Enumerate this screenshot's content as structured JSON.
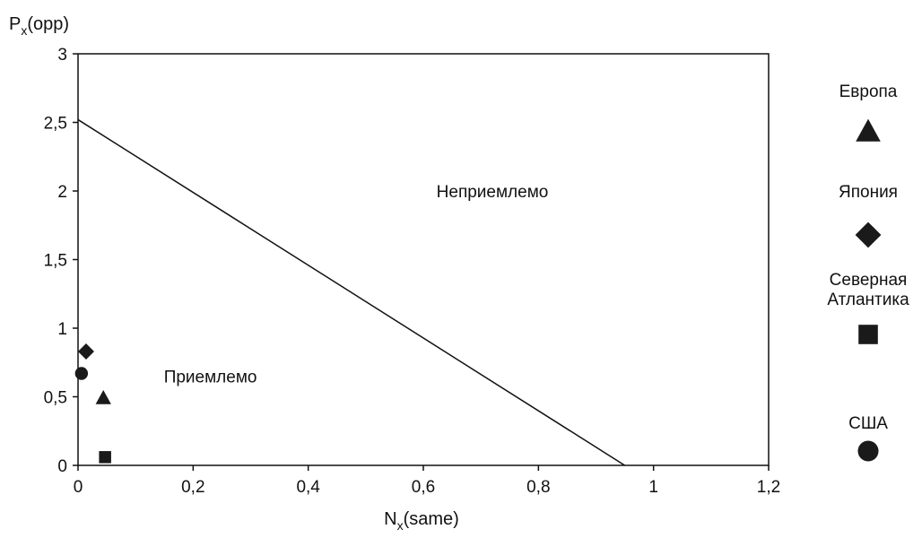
{
  "chart_data": {
    "type": "scatter",
    "title": "",
    "xlabel": {
      "base": "N",
      "sub": "x",
      "rest": "(same)"
    },
    "ylabel": {
      "base": "P",
      "sub": "x",
      "rest": "(opp)"
    },
    "xlim": [
      0,
      1.2
    ],
    "ylim": [
      0,
      3
    ],
    "x_ticks": [
      0,
      0.2,
      0.4,
      0.6,
      0.8,
      1.0,
      1.2
    ],
    "x_tick_labels": [
      "0",
      "0,2",
      "0,4",
      "0,6",
      "0,8",
      "1",
      "1,2"
    ],
    "y_ticks": [
      0,
      0.5,
      1.0,
      1.5,
      2.0,
      2.5,
      3.0
    ],
    "y_tick_labels": [
      "0",
      "0,5",
      "1",
      "1,5",
      "2",
      "2,5",
      "3"
    ],
    "grid": false,
    "legend_position": "right",
    "boundary_line": {
      "points": [
        [
          0,
          2.52
        ],
        [
          0.95,
          0
        ]
      ]
    },
    "annotations": [
      {
        "text": "Неприемлемо",
        "x": 0.72,
        "y": 2.0
      },
      {
        "text": "Приемлемо",
        "x": 0.23,
        "y": 0.65
      }
    ],
    "series": [
      {
        "name": "Европа",
        "marker": "triangle",
        "points": [
          [
            0.044,
            0.49
          ]
        ]
      },
      {
        "name": "Япония",
        "marker": "diamond",
        "points": [
          [
            0.014,
            0.83
          ]
        ]
      },
      {
        "name": [
          "Северная",
          "Атлантика"
        ],
        "marker": "square",
        "points": [
          [
            0.047,
            0.06
          ]
        ]
      },
      {
        "name": "США",
        "marker": "circle",
        "points": [
          [
            0.006,
            0.67
          ]
        ]
      }
    ],
    "colors": {
      "marker": "#1a1a1a",
      "line": "#111111",
      "axis": "#111111"
    }
  }
}
